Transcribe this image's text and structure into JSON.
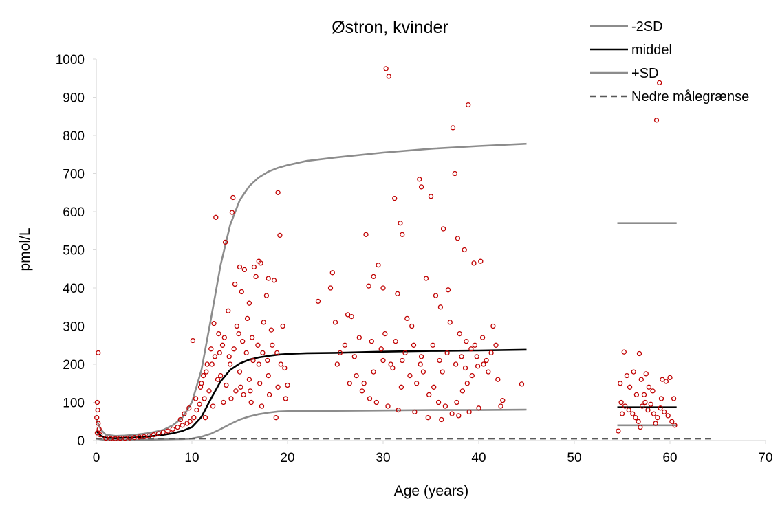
{
  "chart_data": {
    "type": "scatter",
    "title": "Østron, kvinder",
    "xlabel": "Age (years)",
    "ylabel": "pmol/L",
    "xlim": [
      0,
      70
    ],
    "ylim": [
      0,
      1000
    ],
    "x_ticks": [
      0,
      10,
      20,
      30,
      40,
      50,
      60,
      70
    ],
    "y_ticks": [
      0,
      100,
      200,
      300,
      400,
      500,
      600,
      700,
      800,
      900,
      1000
    ],
    "grid": false,
    "legend_position": "top-right",
    "legend": [
      {
        "label": "-2SD",
        "style": "solid",
        "color": "#8c8c8c"
      },
      {
        "label": "middel",
        "style": "solid",
        "color": "#000000"
      },
      {
        "label": "+SD",
        "style": "solid",
        "color": "#8c8c8c"
      },
      {
        "label": "Nedre målegrænse",
        "style": "dashed",
        "color": "#595959"
      }
    ],
    "series": [
      {
        "name": "+SD",
        "color": "#8c8c8c",
        "x": [
          0,
          0.5,
          1,
          2,
          3,
          4,
          5,
          6,
          7,
          8,
          9,
          10,
          11,
          12,
          13,
          14,
          15,
          16,
          17,
          18,
          19,
          20,
          22,
          25,
          30,
          35,
          40,
          45
        ],
        "y": [
          55,
          28,
          15,
          12,
          13,
          15,
          18,
          22,
          28,
          40,
          60,
          100,
          185,
          320,
          460,
          565,
          630,
          667,
          690,
          705,
          715,
          722,
          733,
          742,
          755,
          765,
          772,
          778
        ]
      },
      {
        "name": "middel",
        "color": "#000000",
        "x": [
          0,
          0.5,
          1,
          2,
          3,
          4,
          5,
          6,
          7,
          8,
          9,
          10,
          11,
          12,
          13,
          14,
          15,
          16,
          17,
          18,
          19,
          20,
          22,
          25,
          30,
          35,
          40,
          45
        ],
        "y": [
          25,
          12,
          7,
          6,
          7,
          8,
          10,
          12,
          15,
          19,
          25,
          35,
          62,
          110,
          155,
          185,
          202,
          212,
          218,
          222,
          225,
          227,
          229,
          230,
          233,
          235,
          236,
          238
        ]
      },
      {
        "name": "-2SD",
        "color": "#8c8c8c",
        "x": [
          0,
          1,
          3,
          5,
          7,
          9,
          10,
          11,
          12,
          13,
          14,
          15,
          16,
          17,
          18,
          19,
          20,
          25,
          30,
          35,
          40,
          45
        ],
        "y": [
          5,
          1,
          1,
          2,
          3,
          4,
          5,
          10,
          18,
          30,
          43,
          55,
          63,
          69,
          73,
          76,
          77,
          78,
          79,
          80,
          80,
          81
        ]
      },
      {
        "name": "Nedre målegrænse",
        "color": "#595959",
        "x": [
          0,
          64.5
        ],
        "y": [
          5,
          5
        ]
      },
      {
        "name": "+SD (55-60 y)",
        "color": "#8c8c8c",
        "x": [
          54.5,
          60.7
        ],
        "y": [
          570,
          570
        ]
      },
      {
        "name": "middel (55-60 y)",
        "color": "#000000",
        "x": [
          54.5,
          60.7
        ],
        "y": [
          87,
          87
        ]
      },
      {
        "name": "-2SD (55-60 y)",
        "color": "#8c8c8c",
        "x": [
          54.5,
          60.7
        ],
        "y": [
          40,
          40
        ]
      }
    ],
    "points_color": "#c00000",
    "points": [
      [
        0.2,
        230
      ],
      [
        0.1,
        100
      ],
      [
        0.15,
        80
      ],
      [
        0.05,
        60
      ],
      [
        0.2,
        45
      ],
      [
        0.3,
        30
      ],
      [
        0.1,
        20
      ],
      [
        0.4,
        15
      ],
      [
        10.1,
        262
      ],
      [
        12.3,
        307
      ],
      [
        12.5,
        585
      ],
      [
        13.5,
        520
      ],
      [
        14.2,
        598
      ],
      [
        14.3,
        637
      ],
      [
        15.0,
        455
      ],
      [
        15.5,
        448
      ],
      [
        16.5,
        455
      ],
      [
        16.7,
        430
      ],
      [
        17.0,
        470
      ],
      [
        17.2,
        465
      ],
      [
        18.0,
        425
      ],
      [
        18.6,
        420
      ],
      [
        19.0,
        650
      ],
      [
        19.2,
        538
      ],
      [
        14.5,
        410
      ],
      [
        15.2,
        390
      ],
      [
        16.0,
        360
      ],
      [
        13.8,
        340
      ],
      [
        12.8,
        280
      ],
      [
        14.7,
        300
      ],
      [
        15.8,
        320
      ],
      [
        17.5,
        310
      ],
      [
        18.3,
        290
      ],
      [
        13.2,
        250
      ],
      [
        16.3,
        270
      ],
      [
        17.8,
        380
      ],
      [
        19.5,
        300
      ],
      [
        12.1,
        200
      ],
      [
        11.5,
        180
      ],
      [
        11.0,
        150
      ],
      [
        13.0,
        170
      ],
      [
        14.0,
        200
      ],
      [
        15.0,
        180
      ],
      [
        16.0,
        160
      ],
      [
        17.0,
        200
      ],
      [
        18.0,
        170
      ],
      [
        19.0,
        140
      ],
      [
        20.0,
        145
      ],
      [
        19.8,
        110
      ],
      [
        18.8,
        60
      ],
      [
        17.3,
        90
      ],
      [
        16.2,
        100
      ],
      [
        15.4,
        120
      ],
      [
        14.6,
        130
      ],
      [
        13.6,
        145
      ],
      [
        12.7,
        160
      ],
      [
        11.8,
        130
      ],
      [
        11.3,
        110
      ],
      [
        10.8,
        95
      ],
      [
        10.5,
        80
      ],
      [
        10.2,
        60
      ],
      [
        9.8,
        50
      ],
      [
        9.5,
        45
      ],
      [
        9.0,
        40
      ],
      [
        8.5,
        35
      ],
      [
        8.0,
        30
      ],
      [
        7.5,
        25
      ],
      [
        7.0,
        22
      ],
      [
        6.5,
        18
      ],
      [
        6.0,
        15
      ],
      [
        5.5,
        12
      ],
      [
        5.0,
        10
      ],
      [
        4.5,
        9
      ],
      [
        4.0,
        8
      ],
      [
        3.5,
        7
      ],
      [
        3.0,
        6
      ],
      [
        2.5,
        6
      ],
      [
        2.0,
        5
      ],
      [
        1.5,
        5
      ],
      [
        1.0,
        6
      ],
      [
        8.8,
        55
      ],
      [
        9.2,
        70
      ],
      [
        9.7,
        85
      ],
      [
        10.4,
        110
      ],
      [
        10.9,
        140
      ],
      [
        11.2,
        170
      ],
      [
        11.6,
        200
      ],
      [
        12.0,
        240
      ],
      [
        12.4,
        220
      ],
      [
        12.9,
        230
      ],
      [
        13.4,
        270
      ],
      [
        13.9,
        220
      ],
      [
        14.4,
        240
      ],
      [
        14.9,
        280
      ],
      [
        15.3,
        260
      ],
      [
        15.7,
        230
      ],
      [
        16.4,
        210
      ],
      [
        16.9,
        250
      ],
      [
        17.4,
        230
      ],
      [
        17.9,
        210
      ],
      [
        18.4,
        250
      ],
      [
        18.9,
        230
      ],
      [
        19.3,
        200
      ],
      [
        19.7,
        190
      ],
      [
        11.4,
        60
      ],
      [
        12.2,
        90
      ],
      [
        13.3,
        100
      ],
      [
        14.1,
        110
      ],
      [
        15.1,
        140
      ],
      [
        16.1,
        130
      ],
      [
        17.1,
        150
      ],
      [
        18.1,
        120
      ],
      [
        23.2,
        365
      ],
      [
        24.5,
        400
      ],
      [
        24.7,
        440
      ],
      [
        25.0,
        310
      ],
      [
        25.5,
        230
      ],
      [
        26.0,
        250
      ],
      [
        26.3,
        330
      ],
      [
        26.7,
        325
      ],
      [
        27.5,
        270
      ],
      [
        28.2,
        540
      ],
      [
        28.5,
        405
      ],
      [
        29.0,
        430
      ],
      [
        29.5,
        460
      ],
      [
        30.3,
        975
      ],
      [
        30.6,
        955
      ],
      [
        31.2,
        635
      ],
      [
        31.8,
        570
      ],
      [
        32.0,
        540
      ],
      [
        33.8,
        685
      ],
      [
        34.0,
        665
      ],
      [
        35.0,
        640
      ],
      [
        36.3,
        555
      ],
      [
        37.3,
        820
      ],
      [
        37.5,
        700
      ],
      [
        37.8,
        530
      ],
      [
        38.5,
        500
      ],
      [
        38.9,
        880
      ],
      [
        39.5,
        465
      ],
      [
        40.2,
        470
      ],
      [
        30.0,
        400
      ],
      [
        31.5,
        385
      ],
      [
        32.5,
        320
      ],
      [
        33.0,
        300
      ],
      [
        34.5,
        425
      ],
      [
        35.5,
        380
      ],
      [
        36.0,
        350
      ],
      [
        36.8,
        395
      ],
      [
        37.0,
        310
      ],
      [
        38.0,
        280
      ],
      [
        38.7,
        260
      ],
      [
        39.2,
        240
      ],
      [
        39.8,
        220
      ],
      [
        40.5,
        200
      ],
      [
        41.0,
        180
      ],
      [
        41.5,
        300
      ],
      [
        42.0,
        160
      ],
      [
        42.3,
        90
      ],
      [
        42.5,
        105
      ],
      [
        44.5,
        148
      ],
      [
        28.0,
        150
      ],
      [
        29.0,
        180
      ],
      [
        30.0,
        210
      ],
      [
        30.8,
        200
      ],
      [
        31.0,
        190
      ],
      [
        32.0,
        210
      ],
      [
        32.8,
        170
      ],
      [
        33.5,
        150
      ],
      [
        34.2,
        180
      ],
      [
        34.8,
        120
      ],
      [
        35.3,
        140
      ],
      [
        35.8,
        100
      ],
      [
        36.5,
        90
      ],
      [
        37.2,
        70
      ],
      [
        37.7,
        100
      ],
      [
        38.3,
        130
      ],
      [
        38.8,
        150
      ],
      [
        39.3,
        170
      ],
      [
        39.9,
        195
      ],
      [
        40.8,
        210
      ],
      [
        41.3,
        230
      ],
      [
        25.2,
        200
      ],
      [
        26.5,
        150
      ],
      [
        27.2,
        170
      ],
      [
        27.8,
        130
      ],
      [
        28.6,
        110
      ],
      [
        29.3,
        100
      ],
      [
        30.5,
        90
      ],
      [
        31.6,
        80
      ],
      [
        33.3,
        75
      ],
      [
        34.7,
        60
      ],
      [
        36.1,
        55
      ],
      [
        37.9,
        65
      ],
      [
        39.0,
        75
      ],
      [
        40.0,
        85
      ],
      [
        27.0,
        220
      ],
      [
        28.8,
        260
      ],
      [
        29.8,
        240
      ],
      [
        30.2,
        280
      ],
      [
        31.3,
        260
      ],
      [
        32.3,
        230
      ],
      [
        33.2,
        250
      ],
      [
        34.0,
        220
      ],
      [
        35.2,
        250
      ],
      [
        35.9,
        210
      ],
      [
        36.7,
        230
      ],
      [
        37.6,
        200
      ],
      [
        38.2,
        220
      ],
      [
        39.6,
        250
      ],
      [
        40.4,
        270
      ],
      [
        41.8,
        250
      ],
      [
        31.9,
        140
      ],
      [
        33.9,
        200
      ],
      [
        36.2,
        180
      ],
      [
        38.6,
        190
      ],
      [
        54.8,
        150
      ],
      [
        55.2,
        232
      ],
      [
        55.5,
        170
      ],
      [
        55.8,
        140
      ],
      [
        56.2,
        180
      ],
      [
        56.5,
        120
      ],
      [
        56.8,
        228
      ],
      [
        57.0,
        160
      ],
      [
        57.5,
        175
      ],
      [
        57.8,
        140
      ],
      [
        58.2,
        130
      ],
      [
        58.6,
        840
      ],
      [
        58.9,
        938
      ],
      [
        59.2,
        160
      ],
      [
        59.6,
        155
      ],
      [
        60.0,
        165
      ],
      [
        60.4,
        110
      ],
      [
        54.9,
        100
      ],
      [
        55.3,
        90
      ],
      [
        55.7,
        80
      ],
      [
        56.1,
        70
      ],
      [
        56.4,
        60
      ],
      [
        56.7,
        50
      ],
      [
        57.1,
        90
      ],
      [
        57.4,
        100
      ],
      [
        57.7,
        80
      ],
      [
        58.0,
        95
      ],
      [
        58.3,
        70
      ],
      [
        58.7,
        60
      ],
      [
        59.0,
        85
      ],
      [
        59.4,
        75
      ],
      [
        59.8,
        65
      ],
      [
        60.2,
        50
      ],
      [
        54.6,
        25
      ],
      [
        56.9,
        35
      ],
      [
        58.5,
        45
      ],
      [
        60.5,
        40
      ],
      [
        55.0,
        70
      ],
      [
        57.3,
        120
      ],
      [
        59.1,
        110
      ]
    ]
  }
}
